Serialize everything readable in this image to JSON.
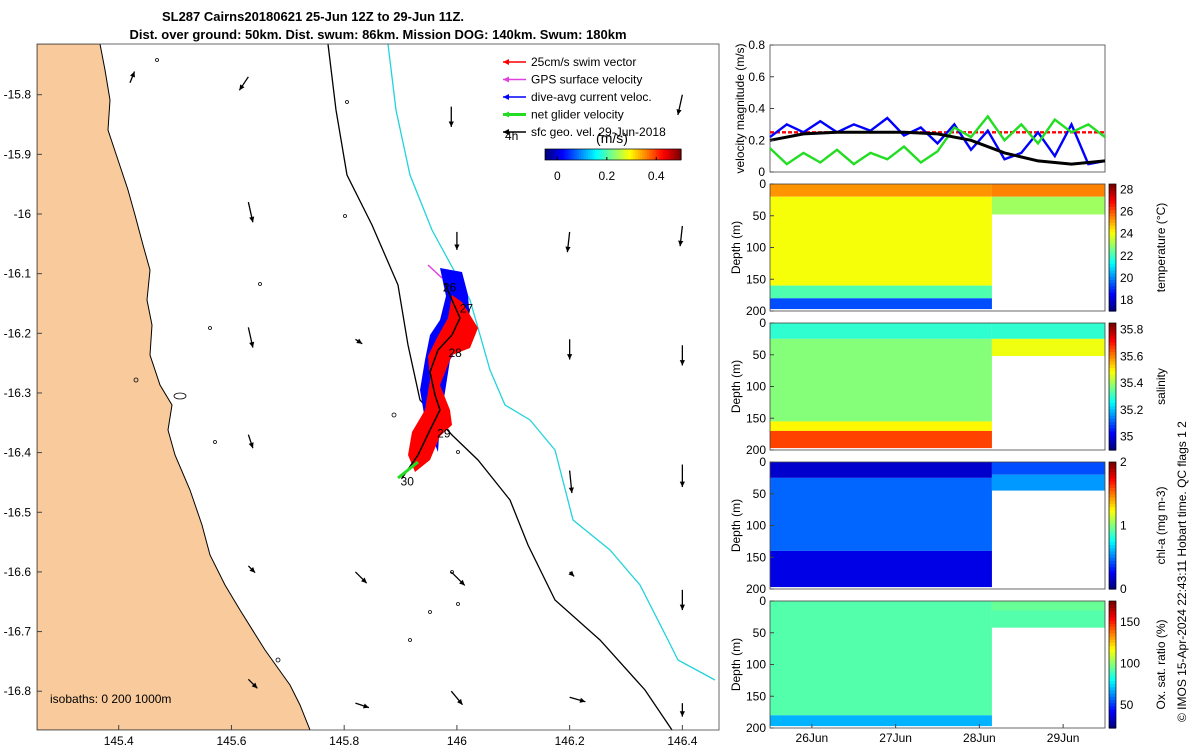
{
  "title": {
    "line1": "SL287 Cairns20180621 25-Jun 12Z to 29-Jun 11Z.",
    "line2": "Dist. over ground: 50km. Dist. swum: 86km. Mission DOG: 140km. Swum: 180km"
  },
  "footer_text": "© IMOS 15-Apr-2024 22:43:11 Hobart time. QC flags 1  2",
  "colors": {
    "land": "#f9cb9c",
    "coast_line": "#000000",
    "isobath_200": "#000000",
    "isobath_1000": "#22d3db",
    "glider_dive_avg": "#0000ff",
    "glider_swim": "#ff0000",
    "gps": "#e040e0",
    "net": "#22dd22"
  },
  "chart_data": [
    {
      "type": "map",
      "x_ticks": [
        "145.4",
        "145.6",
        "145.8",
        "146",
        "146.2",
        "146.4"
      ],
      "x_tick_values": [
        145.4,
        145.6,
        145.8,
        146.0,
        146.2,
        146.4
      ],
      "y_ticks": [
        "-15.8",
        "-15.9",
        "-16",
        "-16.1",
        "-16.2",
        "-16.3",
        "-16.4",
        "-16.5",
        "-16.6",
        "-16.7",
        "-16.8"
      ],
      "y_tick_values": [
        -15.8,
        -15.9,
        -16.0,
        -16.1,
        -16.2,
        -16.3,
        -16.4,
        -16.5,
        -16.6,
        -16.7,
        -16.8
      ],
      "xlim": [
        145.255,
        146.465
      ],
      "ylim": [
        -16.865,
        -15.715
      ],
      "legend": [
        {
          "label": "25cm/s swim vector",
          "color": "#ff0000"
        },
        {
          "label": "GPS surface velocity",
          "color": "#e040e0"
        },
        {
          "label": "dive-avg current veloc.",
          "color": "#0000ff"
        },
        {
          "label": "net glider velocity",
          "color": "#22dd22"
        },
        {
          "label": "sfc geo. vel. 29-Jun-2018",
          "color": "#000000"
        }
      ],
      "legend_extra": "4h",
      "colorbar": {
        "label": "(m/s)",
        "ticks": [
          "0",
          "0.2",
          "0.4"
        ],
        "tick_values": [
          0,
          0.2,
          0.4
        ],
        "range": [
          -0.05,
          0.5
        ]
      },
      "isobath_text": "isobaths: 0   200  1000m",
      "day_labels": [
        {
          "label": "26",
          "lon": 145.975,
          "lat": -16.13
        },
        {
          "label": "27",
          "lon": 146.005,
          "lat": -16.165
        },
        {
          "label": "28",
          "lon": 145.985,
          "lat": -16.24
        },
        {
          "label": "29",
          "lon": 145.965,
          "lat": -16.375
        },
        {
          "label": "30",
          "lon": 145.9,
          "lat": -16.455
        }
      ],
      "geo_vectors": [
        {
          "lon": 145.63,
          "lat": -15.77,
          "u": -0.02,
          "v": -0.03
        },
        {
          "lon": 145.42,
          "lat": -15.78,
          "u": 0.01,
          "v": 0.025
        },
        {
          "lon": 145.63,
          "lat": -15.98,
          "u": 0.01,
          "v": -0.045
        },
        {
          "lon": 145.63,
          "lat": -16.19,
          "u": 0.01,
          "v": -0.045
        },
        {
          "lon": 145.63,
          "lat": -16.37,
          "u": 0.01,
          "v": -0.03
        },
        {
          "lon": 145.63,
          "lat": -16.59,
          "u": 0.015,
          "v": -0.015
        },
        {
          "lon": 145.63,
          "lat": -16.78,
          "u": 0.02,
          "v": -0.02
        },
        {
          "lon": 145.82,
          "lat": -16.6,
          "u": 0.025,
          "v": -0.025
        },
        {
          "lon": 145.82,
          "lat": -16.82,
          "u": 0.03,
          "v": -0.01
        },
        {
          "lon": 145.82,
          "lat": -16.21,
          "u": 0.015,
          "v": -0.01
        },
        {
          "lon": 145.99,
          "lat": -15.82,
          "u": 0.0,
          "v": -0.045
        },
        {
          "lon": 146.0,
          "lat": -16.03,
          "u": 0.0,
          "v": -0.04
        },
        {
          "lon": 145.99,
          "lat": -16.6,
          "u": 0.03,
          "v": -0.03
        },
        {
          "lon": 145.99,
          "lat": -16.8,
          "u": 0.025,
          "v": -0.03
        },
        {
          "lon": 146.2,
          "lat": -16.03,
          "u": -0.005,
          "v": -0.045
        },
        {
          "lon": 146.2,
          "lat": -16.21,
          "u": 0.0,
          "v": -0.045
        },
        {
          "lon": 146.2,
          "lat": -16.43,
          "u": 0.005,
          "v": -0.05
        },
        {
          "lon": 146.2,
          "lat": -16.6,
          "u": 0.01,
          "v": -0.01
        },
        {
          "lon": 146.2,
          "lat": -16.81,
          "u": 0.035,
          "v": -0.01
        },
        {
          "lon": 146.4,
          "lat": -15.8,
          "u": -0.01,
          "v": -0.045
        },
        {
          "lon": 146.4,
          "lat": -16.02,
          "u": -0.005,
          "v": -0.045
        },
        {
          "lon": 146.4,
          "lat": -16.22,
          "u": 0.0,
          "v": -0.045
        },
        {
          "lon": 146.4,
          "lat": -16.42,
          "u": 0.0,
          "v": -0.05
        },
        {
          "lon": 146.4,
          "lat": -16.63,
          "u": 0.0,
          "v": -0.045
        },
        {
          "lon": 146.4,
          "lat": -16.82,
          "u": 0.0,
          "v": -0.03
        }
      ]
    },
    {
      "type": "line",
      "ylabel": "velocity magnitude (m/s)",
      "y_ticks": [
        "0",
        "0.2",
        "0.4",
        "0.6",
        "0.8"
      ],
      "y_tick_values": [
        0,
        0.2,
        0.4,
        0.6,
        0.8
      ],
      "ylim": [
        0,
        0.8
      ],
      "xlim": [
        0,
        4
      ],
      "series": [
        {
          "color": "#ff0000",
          "x": [
            0,
            4
          ],
          "y": [
            0.25,
            0.25
          ]
        },
        {
          "color": "#0000ff",
          "x": [
            0,
            0.2,
            0.4,
            0.6,
            0.8,
            1.0,
            1.2,
            1.4,
            1.6,
            1.8,
            2.0,
            2.2,
            2.4,
            2.6,
            2.8,
            3.0,
            3.2,
            3.4,
            3.6,
            3.8,
            4.0
          ],
          "y": [
            0.22,
            0.3,
            0.25,
            0.32,
            0.25,
            0.3,
            0.26,
            0.34,
            0.23,
            0.28,
            0.18,
            0.3,
            0.14,
            0.26,
            0.08,
            0.12,
            0.25,
            0.1,
            0.3,
            0.05,
            0.07
          ]
        },
        {
          "color": "#22dd22",
          "x": [
            0,
            0.2,
            0.4,
            0.6,
            0.8,
            1.0,
            1.2,
            1.4,
            1.6,
            1.8,
            2.0,
            2.2,
            2.4,
            2.6,
            2.8,
            3.0,
            3.2,
            3.4,
            3.6,
            3.8,
            4.0
          ],
          "y": [
            0.15,
            0.05,
            0.12,
            0.06,
            0.14,
            0.05,
            0.12,
            0.08,
            0.16,
            0.06,
            0.13,
            0.28,
            0.22,
            0.35,
            0.2,
            0.3,
            0.18,
            0.33,
            0.25,
            0.3,
            0.22
          ]
        },
        {
          "color": "#000000",
          "x": [
            0,
            0.4,
            0.8,
            1.2,
            1.6,
            2.0,
            2.4,
            2.8,
            3.2,
            3.6,
            4.0
          ],
          "y": [
            0.2,
            0.24,
            0.25,
            0.25,
            0.25,
            0.24,
            0.2,
            0.12,
            0.07,
            0.05,
            0.07
          ]
        }
      ]
    },
    {
      "type": "heatmap",
      "ylabel": "Depth (m)",
      "clabel": "temperature (°C)",
      "cticks": [
        "18",
        "20",
        "22",
        "24",
        "26",
        "28"
      ],
      "ctick_values": [
        18,
        20,
        22,
        24,
        26,
        28
      ],
      "crange": [
        17,
        28.5
      ],
      "y_ticks": [
        "0",
        "50",
        "100",
        "150",
        "200"
      ],
      "y_tick_values": [
        0,
        50,
        100,
        150,
        200
      ],
      "ylim": [
        0,
        200
      ],
      "xlim": [
        0,
        4
      ],
      "layers": [
        {
          "x0": 0,
          "x1": 2.65,
          "top": 0,
          "bottom": 20,
          "value": 25.4
        },
        {
          "x0": 0,
          "x1": 2.65,
          "top": 20,
          "bottom": 160,
          "value": 24.1
        },
        {
          "x0": 0,
          "x1": 2.65,
          "top": 160,
          "bottom": 180,
          "value": 22.2
        },
        {
          "x0": 0,
          "x1": 2.65,
          "top": 180,
          "bottom": 197,
          "value": 19.3
        },
        {
          "x0": 2.65,
          "x1": 4,
          "top": 0,
          "bottom": 20,
          "value": 25.6
        },
        {
          "x0": 2.65,
          "x1": 4,
          "top": 20,
          "bottom": 48,
          "value": 23.1
        }
      ]
    },
    {
      "type": "heatmap",
      "ylabel": "Depth (m)",
      "clabel": "salinity",
      "cticks": [
        "35",
        "35.2",
        "35.4",
        "35.6",
        "35.8"
      ],
      "ctick_values": [
        35.0,
        35.2,
        35.4,
        35.6,
        35.8
      ],
      "crange": [
        34.9,
        35.85
      ],
      "y_ticks": [
        "0",
        "50",
        "100",
        "150",
        "200"
      ],
      "y_tick_values": [
        0,
        50,
        100,
        150,
        200
      ],
      "ylim": [
        0,
        200
      ],
      "xlim": [
        0,
        4
      ],
      "layers": [
        {
          "x0": 0,
          "x1": 2.65,
          "top": 0,
          "bottom": 25,
          "value": 35.3
        },
        {
          "x0": 0,
          "x1": 2.65,
          "top": 25,
          "bottom": 155,
          "value": 35.38
        },
        {
          "x0": 0,
          "x1": 2.65,
          "top": 155,
          "bottom": 170,
          "value": 35.5
        },
        {
          "x0": 0,
          "x1": 2.65,
          "top": 170,
          "bottom": 197,
          "value": 35.67
        },
        {
          "x0": 2.65,
          "x1": 4,
          "top": 0,
          "bottom": 25,
          "value": 35.3
        },
        {
          "x0": 2.65,
          "x1": 4,
          "top": 25,
          "bottom": 52,
          "value": 35.48
        }
      ]
    },
    {
      "type": "heatmap",
      "ylabel": "Depth (m)",
      "clabel": "chl-a (mg m-3)",
      "cticks": [
        "0",
        "1",
        "2"
      ],
      "ctick_values": [
        0,
        1,
        2
      ],
      "crange": [
        0,
        2
      ],
      "y_ticks": [
        "0",
        "50",
        "100",
        "150",
        "200"
      ],
      "y_tick_values": [
        0,
        50,
        100,
        150,
        200
      ],
      "ylim": [
        0,
        200
      ],
      "xlim": [
        0,
        4
      ],
      "layers": [
        {
          "x0": 0,
          "x1": 2.65,
          "top": 0,
          "bottom": 25,
          "value": 0.15
        },
        {
          "x0": 0,
          "x1": 2.65,
          "top": 25,
          "bottom": 140,
          "value": 0.45
        },
        {
          "x0": 0,
          "x1": 2.65,
          "top": 140,
          "bottom": 197,
          "value": 0.2
        },
        {
          "x0": 2.65,
          "x1": 4,
          "top": 0,
          "bottom": 20,
          "value": 0.4
        },
        {
          "x0": 2.65,
          "x1": 4,
          "top": 20,
          "bottom": 45,
          "value": 0.55
        }
      ]
    },
    {
      "type": "heatmap",
      "ylabel": "Depth (m)",
      "clabel": "Ox. sat. ratio (%)",
      "cticks": [
        "50",
        "100",
        "150"
      ],
      "ctick_values": [
        50,
        100,
        150
      ],
      "crange": [
        22,
        175
      ],
      "y_ticks": [
        "0",
        "50",
        "100",
        "150",
        "200"
      ],
      "y_tick_values": [
        0,
        50,
        100,
        150,
        200
      ],
      "ylim": [
        0,
        200
      ],
      "xlim": [
        0,
        4
      ],
      "x_ticks": [
        "26Jun",
        "27Jun",
        "28Jun",
        "29Jun"
      ],
      "x_tick_values": [
        0.5,
        1.5,
        2.5,
        3.5
      ],
      "layers": [
        {
          "x0": 0,
          "x1": 2.65,
          "top": 0,
          "bottom": 180,
          "value": 92
        },
        {
          "x0": 0,
          "x1": 2.65,
          "top": 180,
          "bottom": 197,
          "value": 68
        },
        {
          "x0": 2.65,
          "x1": 4,
          "top": 0,
          "bottom": 15,
          "value": 95
        },
        {
          "x0": 2.65,
          "x1": 4,
          "top": 15,
          "bottom": 42,
          "value": 92
        }
      ]
    }
  ]
}
